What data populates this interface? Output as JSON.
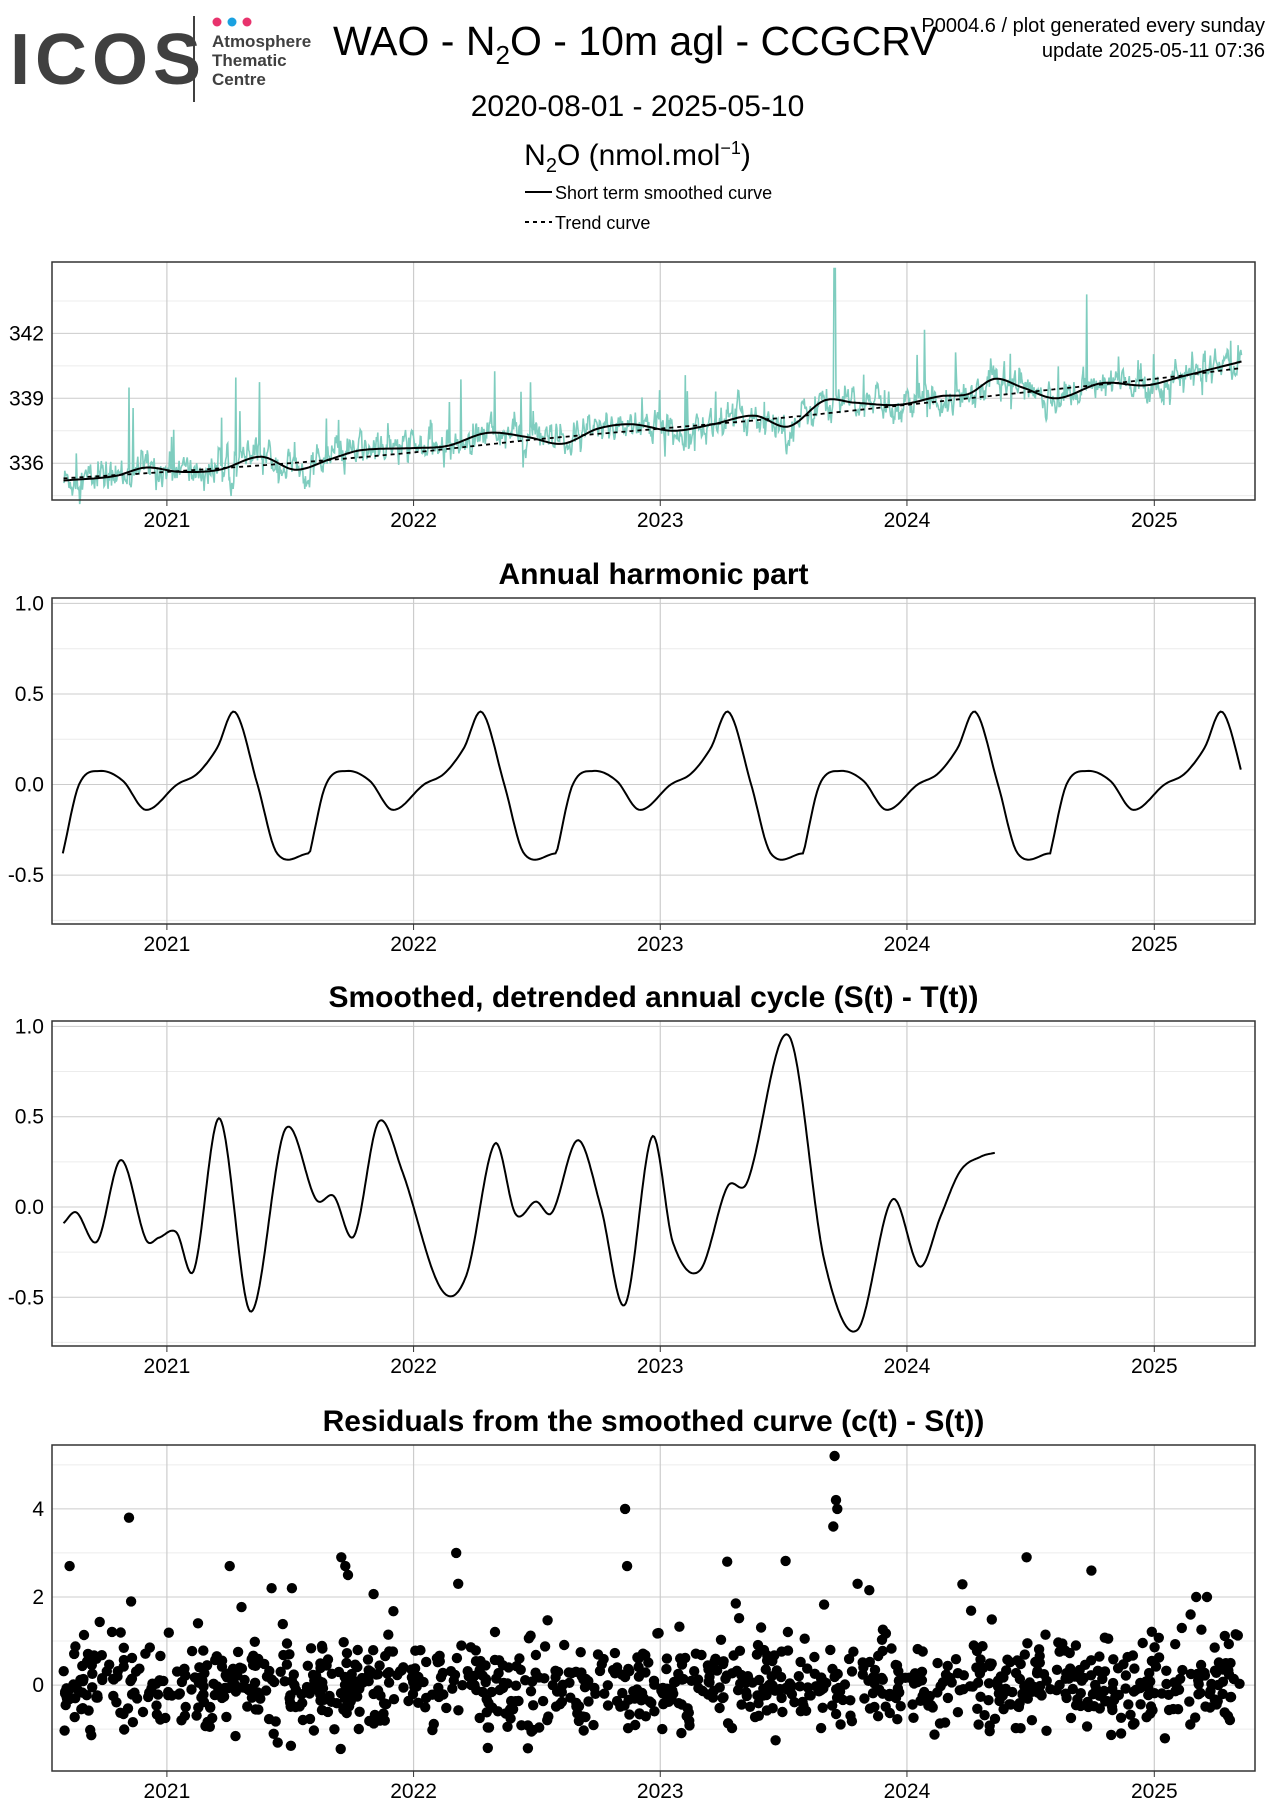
{
  "header": {
    "logo_text": "ICOS",
    "logo_subtitle": [
      "Atmosphere",
      "Thematic",
      "Centre"
    ],
    "logo_dot_colors": [
      "#e8336d",
      "#1aa1e0",
      "#e8336d"
    ],
    "title_pre": "WAO - N",
    "title_sub": "2",
    "title_post": "O - 10m agl - CCGCRV",
    "meta_line1": "P0004.6 / plot generated every sunday",
    "meta_line2": "update  2025-05-11 07:36",
    "date_range": "2020-08-01 - 2025-05-10",
    "unit_pre": "N",
    "unit_sub": "2",
    "unit_mid": "O (nmol.mol",
    "unit_sup": "−1",
    "unit_post": ")"
  },
  "legend": {
    "solid_label": "Short term smoothed curve",
    "dashed_label": "Trend curve"
  },
  "colors": {
    "observations": "#7fcdbf",
    "curve": "#000000",
    "grid_major": "#cccccc",
    "grid_minor": "#ececec",
    "panel_border": "#333333"
  },
  "chart_data": [
    {
      "type": "line",
      "title": "",
      "x_axis": "date",
      "xlim": [
        "2020-07-15",
        "2025-05-30"
      ],
      "xticks": [
        "2021",
        "2022",
        "2023",
        "2024",
        "2025"
      ],
      "ylim": [
        334.3,
        345.3
      ],
      "yticks": [
        336,
        339,
        342
      ],
      "series": [
        {
          "name": "Short term smoothed curve",
          "style": "solid",
          "points": [
            [
              "2020-08-01",
              335.2
            ],
            [
              "2020-10-15",
              335.4
            ],
            [
              "2020-12-01",
              335.8
            ],
            [
              "2021-01-20",
              335.6
            ],
            [
              "2021-03-20",
              335.7
            ],
            [
              "2021-05-20",
              336.3
            ],
            [
              "2021-07-10",
              335.7
            ],
            [
              "2021-09-01",
              336.2
            ],
            [
              "2021-10-15",
              336.6
            ],
            [
              "2022-01-01",
              336.7
            ],
            [
              "2022-02-20",
              336.8
            ],
            [
              "2022-04-20",
              337.4
            ],
            [
              "2022-06-20",
              337.2
            ],
            [
              "2022-08-10",
              336.9
            ],
            [
              "2022-10-01",
              337.6
            ],
            [
              "2022-11-20",
              337.8
            ],
            [
              "2023-01-20",
              337.5
            ],
            [
              "2023-03-20",
              337.8
            ],
            [
              "2023-05-20",
              338.2
            ],
            [
              "2023-07-10",
              337.7
            ],
            [
              "2023-09-01",
              338.9
            ],
            [
              "2023-10-15",
              338.8
            ],
            [
              "2023-12-20",
              338.7
            ],
            [
              "2024-02-20",
              339.1
            ],
            [
              "2024-04-01",
              339.2
            ],
            [
              "2024-05-10",
              339.9
            ],
            [
              "2024-06-20",
              339.5
            ],
            [
              "2024-08-10",
              339.0
            ],
            [
              "2024-10-15",
              339.7
            ],
            [
              "2024-12-20",
              339.6
            ],
            [
              "2025-02-10",
              340.0
            ],
            [
              "2025-05-10",
              340.7
            ]
          ]
        },
        {
          "name": "Trend curve",
          "style": "dashed",
          "points": [
            [
              "2020-08-01",
              335.3
            ],
            [
              "2021-01-01",
              335.6
            ],
            [
              "2021-07-01",
              336.0
            ],
            [
              "2022-01-01",
              336.5
            ],
            [
              "2022-07-01",
              337.1
            ],
            [
              "2023-01-01",
              337.6
            ],
            [
              "2023-07-01",
              338.1
            ],
            [
              "2024-01-01",
              338.7
            ],
            [
              "2024-07-01",
              339.3
            ],
            [
              "2025-01-01",
              339.9
            ],
            [
              "2025-05-10",
              340.4
            ]
          ]
        }
      ]
    },
    {
      "type": "line",
      "title": "Annual harmonic part",
      "x_axis": "date",
      "xlim": [
        "2020-07-15",
        "2025-05-30"
      ],
      "xticks": [
        "2021",
        "2022",
        "2023",
        "2024",
        "2025"
      ],
      "ylim": [
        -0.77,
        1.03
      ],
      "yticks": [
        "1.0",
        "0.5",
        "0.0",
        "-0.5"
      ],
      "period_days": 365.25,
      "series": [
        {
          "name": "",
          "cycle_points": [
            [
              "2020-07-31",
              -0.38
            ],
            [
              "2020-08-24",
              0.0
            ],
            [
              "2020-09-24",
              0.075
            ],
            [
              "2020-10-28",
              0.02
            ],
            [
              "2020-12-01",
              -0.14
            ],
            [
              "2021-01-16",
              0.0
            ],
            [
              "2021-02-15",
              0.06
            ],
            [
              "2021-03-16",
              0.2
            ],
            [
              "2021-04-12",
              0.4
            ],
            [
              "2021-05-15",
              0.0
            ],
            [
              "2021-06-13",
              -0.38
            ],
            [
              "2021-07-31",
              -0.38
            ]
          ],
          "end": "2025-05-10"
        }
      ]
    },
    {
      "type": "line",
      "title": "Smoothed, detrended annual cycle (S(t) - T(t))",
      "x_axis": "date",
      "xlim": [
        "2020-07-15",
        "2025-05-30"
      ],
      "xticks": [
        "2021",
        "2022",
        "2023",
        "2024",
        "2025"
      ],
      "ylim": [
        -0.77,
        1.03
      ],
      "yticks": [
        "1.0",
        "0.5",
        "0.0",
        "-0.5"
      ],
      "series": [
        {
          "name": "",
          "points": [
            [
              "2020-08-01",
              -0.09
            ],
            [
              "2020-08-20",
              -0.03
            ],
            [
              "2020-09-20",
              -0.19
            ],
            [
              "2020-10-25",
              0.26
            ],
            [
              "2020-12-01",
              -0.18
            ],
            [
              "2020-12-20",
              -0.17
            ],
            [
              "2021-01-15",
              -0.14
            ],
            [
              "2021-02-10",
              -0.35
            ],
            [
              "2021-03-20",
              0.49
            ],
            [
              "2021-05-05",
              -0.58
            ],
            [
              "2021-06-25",
              0.43
            ],
            [
              "2021-08-10",
              0.04
            ],
            [
              "2021-09-05",
              0.06
            ],
            [
              "2021-10-05",
              -0.16
            ],
            [
              "2021-11-10",
              0.47
            ],
            [
              "2021-12-15",
              0.2
            ],
            [
              "2022-02-10",
              -0.45
            ],
            [
              "2022-03-20",
              -0.38
            ],
            [
              "2022-05-01",
              0.35
            ],
            [
              "2022-06-01",
              -0.04
            ],
            [
              "2022-07-01",
              0.03
            ],
            [
              "2022-07-25",
              -0.03
            ],
            [
              "2022-09-01",
              0.37
            ],
            [
              "2022-10-05",
              0.0
            ],
            [
              "2022-11-10",
              -0.54
            ],
            [
              "2022-12-20",
              0.39
            ],
            [
              "2023-01-20",
              -0.2
            ],
            [
              "2023-03-01",
              -0.35
            ],
            [
              "2023-04-10",
              0.11
            ],
            [
              "2023-05-10",
              0.14
            ],
            [
              "2023-07-10",
              0.95
            ],
            [
              "2023-09-01",
              -0.3
            ],
            [
              "2023-10-20",
              -0.68
            ],
            [
              "2023-12-10",
              0.04
            ],
            [
              "2024-01-20",
              -0.33
            ],
            [
              "2024-02-20",
              -0.05
            ],
            [
              "2024-03-20",
              0.2
            ],
            [
              "2024-04-20",
              0.28
            ],
            [
              "2024-05-10",
              0.3
            ]
          ]
        }
      ]
    },
    {
      "type": "scatter",
      "title": "Residuals from the smoothed curve (c(t) - S(t))",
      "x_axis": "date",
      "xlim": [
        "2020-07-15",
        "2025-05-30"
      ],
      "xticks": [
        "2021",
        "2022",
        "2023",
        "2024",
        "2025"
      ],
      "ylim": [
        -1.95,
        5.45
      ],
      "yticks": [
        "4",
        "2",
        "0"
      ],
      "series": [
        {
          "name": "",
          "notable_points": [
            [
              "2020-08-10",
              2.7
            ],
            [
              "2020-11-06",
              3.8
            ],
            [
              "2020-11-09",
              1.9
            ],
            [
              "2021-04-04",
              2.7
            ],
            [
              "2021-06-05",
              2.2
            ],
            [
              "2021-07-05",
              2.2
            ],
            [
              "2021-09-16",
              2.9
            ],
            [
              "2021-09-22",
              2.7
            ],
            [
              "2021-09-26",
              2.5
            ],
            [
              "2022-03-05",
              3.0
            ],
            [
              "2022-03-08",
              2.3
            ],
            [
              "2022-11-10",
              4.0
            ],
            [
              "2022-11-13",
              2.7
            ],
            [
              "2023-04-10",
              2.8
            ],
            [
              "2023-09-16",
              5.2
            ],
            [
              "2023-09-18",
              4.2
            ],
            [
              "2023-09-20",
              4.0
            ],
            [
              "2023-09-14",
              3.6
            ],
            [
              "2023-10-20",
              2.3
            ],
            [
              "2024-06-26",
              2.9
            ],
            [
              "2024-09-30",
              2.6
            ],
            [
              "2025-03-04",
              2.0
            ],
            [
              "2025-03-20",
              2.0
            ]
          ],
          "bulk_mean": -0.05,
          "bulk_spread": 1.4,
          "bulk_count": 980
        }
      ]
    }
  ]
}
